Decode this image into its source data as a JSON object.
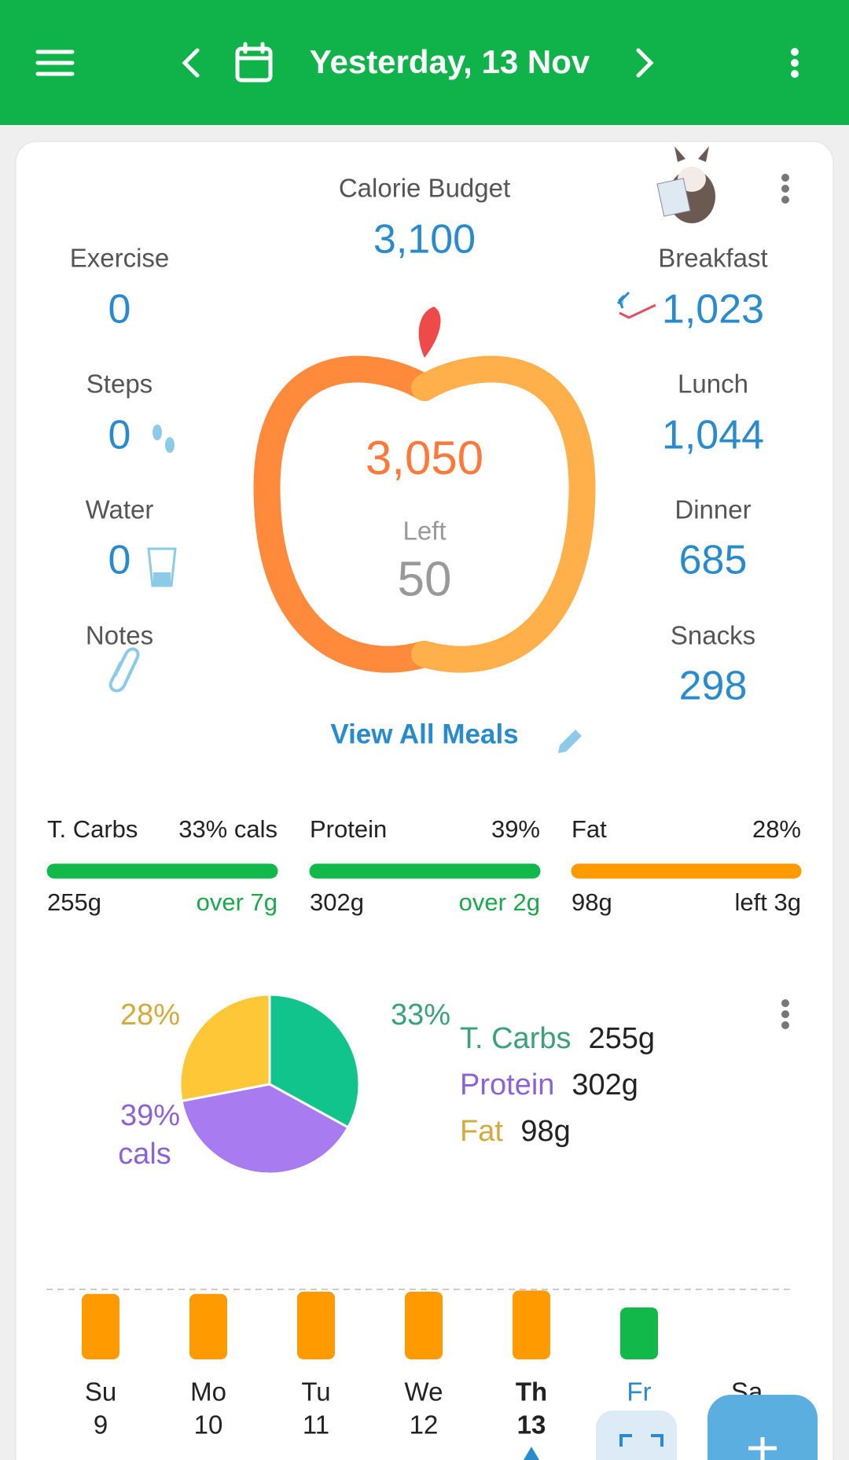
{
  "header": {
    "title": "Yesterday, 13 Nov"
  },
  "summary": {
    "budget_label": "Calorie Budget",
    "budget": "3,100",
    "eaten": "3,050",
    "left_label": "Left",
    "left": "50",
    "left_items": [
      {
        "label": "Exercise",
        "value": "0"
      },
      {
        "label": "Steps",
        "value": "0"
      },
      {
        "label": "Water",
        "value": "0"
      },
      {
        "label": "Notes"
      }
    ],
    "meals": [
      {
        "label": "Breakfast",
        "value": "1,023"
      },
      {
        "label": "Lunch",
        "value": "1,044"
      },
      {
        "label": "Dinner",
        "value": "685"
      },
      {
        "label": "Snacks",
        "value": "298"
      }
    ],
    "view_all": "View All Meals"
  },
  "macros": [
    {
      "name": "T. Carbs",
      "percent": "33% cals",
      "grams": "255g",
      "status": "over 7g",
      "color": "#12b84a"
    },
    {
      "name": "Protein",
      "percent": "39%",
      "grams": "302g",
      "status": "over 2g",
      "color": "#12b84a"
    },
    {
      "name": "Fat",
      "percent": "28%",
      "grams": "98g",
      "status": "left 3g",
      "color": "#ff9a00"
    }
  ],
  "pie": {
    "type": "pie",
    "categories": [
      "T. Carbs",
      "Protein",
      "Fat"
    ],
    "values": [
      33,
      39,
      28
    ],
    "value_labels": [
      "33%",
      "39%",
      "28%"
    ],
    "unit_note": "cals",
    "colors": [
      "#10c48c",
      "#a87cf0",
      "#fdc737"
    ],
    "label_colors": [
      "#3aa17b",
      "#8c63d6",
      "#d4aa3e"
    ],
    "grams": [
      "255g",
      "302g",
      "98g"
    ]
  },
  "week": {
    "type": "bar",
    "categories": [
      "Su",
      "Mo",
      "Tu",
      "We",
      "Th",
      "Fr",
      "Sa"
    ],
    "dates": [
      "9",
      "10",
      "11",
      "12",
      "13",
      null,
      null
    ],
    "values": [
      2900,
      2900,
      3000,
      3000,
      3050,
      2300,
      null
    ],
    "colors": [
      "#ff9a00",
      "#ff9a00",
      "#ff9a00",
      "#ff9a00",
      "#ff9a00",
      "#12b84a",
      null
    ],
    "ylim": [
      0,
      3100
    ]
  }
}
